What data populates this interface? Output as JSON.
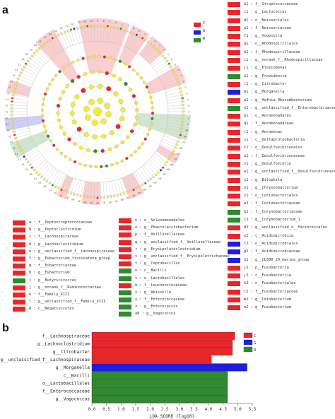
{
  "panel_a_label": "a",
  "panel_b_label": "b",
  "classes": [
    {
      "name": "C",
      "color": "#e8262a"
    },
    {
      "name": "G",
      "color": "#1f1fd6"
    },
    {
      "name": "R",
      "color": "#2e8b2e"
    }
  ],
  "cladogram_tags": [
    "a",
    "b",
    "c",
    "d",
    "e",
    "f",
    "g",
    "h",
    "i",
    "j",
    "k",
    "l",
    "m",
    "n",
    "o",
    "p",
    "q",
    "r",
    "s",
    "t",
    "u",
    "v",
    "w",
    "x",
    "y",
    "z",
    "a0",
    "b0",
    "c0",
    "d0",
    "e0",
    "f0",
    "g0",
    "h0",
    "i0",
    "j0",
    "k0",
    "l0",
    "m0",
    "n0",
    "o0",
    "p0",
    "q0",
    "r0",
    "s0",
    "t0",
    "u0",
    "v0",
    "w0",
    "x0",
    "y0",
    "z0",
    "a1",
    "b1",
    "c1",
    "d1",
    "e1",
    "f1",
    "g1",
    "h1",
    "i1",
    "j1",
    "k1",
    "l1",
    "m1",
    "n1",
    "o1",
    "p1",
    "q1",
    "r1",
    "s1",
    "t1",
    "u1",
    "v1",
    "w1",
    "x1",
    "y1",
    "z1",
    "a2",
    "b2",
    "c2",
    "d2",
    "e2",
    "f2",
    "g2",
    "h2",
    "i2",
    "j2",
    "k2",
    "l2",
    "m2",
    "n2"
  ],
  "legend_right": [
    {
      "key": "b1",
      "text": "b1 : f__Streptococcaceae",
      "cls": "C"
    },
    {
      "key": "c1",
      "text": "c1 : g__Lactococcus",
      "cls": "C"
    },
    {
      "key": "d1",
      "text": "d1 : o__Neisseriales",
      "cls": "C"
    },
    {
      "key": "e1",
      "text": "e1 : f__Neisseriaceae",
      "cls": "C"
    },
    {
      "key": "f1",
      "text": "f1 : g__Vogesella",
      "cls": "C"
    },
    {
      "key": "g1",
      "text": "g1 : o__Rhodospirillales",
      "cls": "C"
    },
    {
      "key": "h1",
      "text": "h1 : f__Rhodospirillaceae",
      "cls": "C"
    },
    {
      "key": "i1",
      "text": "i1 : g__norank_f__Rhodospirillaceae",
      "cls": "C"
    },
    {
      "key": "j1",
      "text": "j1 : g__Plesiomonas",
      "cls": "C"
    },
    {
      "key": "k1",
      "text": "k1 : g__Providencia",
      "cls": "R"
    },
    {
      "key": "l1",
      "text": "l1 : g__Citrobacter",
      "cls": "C"
    },
    {
      "key": "m1",
      "text": "m1 : g__Morganella",
      "cls": "G"
    },
    {
      "key": "n1",
      "text": "n1 : g__Hafnia_Obesumbacterium",
      "cls": "C"
    },
    {
      "key": "o1",
      "text": "o1 : g__unclassified_f__Enterobacteriaceae",
      "cls": "R"
    },
    {
      "key": "p1",
      "text": "p1 : o__Aeromonadales",
      "cls": "C"
    },
    {
      "key": "q1",
      "text": "q1 : f__Aeromonadaceae",
      "cls": "C"
    },
    {
      "key": "r1",
      "text": "r1 : g__Aeromonas",
      "cls": "C"
    },
    {
      "key": "s1",
      "text": "s1 : c__Deltaproteobacteria",
      "cls": "C"
    },
    {
      "key": "t1",
      "text": "t1 : o__Desulfovibrionales",
      "cls": "C"
    },
    {
      "key": "u1",
      "text": "u1 : f__Desulfovibrionaceae",
      "cls": "C"
    },
    {
      "key": "v1",
      "text": "v1 : g__Desulfovibrio",
      "cls": "C"
    },
    {
      "key": "w1",
      "text": "w1 : g__unclassified_f__Desulfovibrionaceae",
      "cls": "C"
    },
    {
      "key": "x1",
      "text": "x1 : g__Bilophila",
      "cls": "C"
    },
    {
      "key": "y1",
      "text": "y1 : g__Chryseobacterium",
      "cls": "C"
    },
    {
      "key": "z1",
      "text": "z1 : o__Coriobacteriales",
      "cls": "C"
    },
    {
      "key": "a2",
      "text": "a2 : f__Coriobacteriaceae",
      "cls": "C"
    },
    {
      "key": "b2",
      "text": "b2 : f__Corynebacteriaceae",
      "cls": "R"
    },
    {
      "key": "c2",
      "text": "c2 : g__Corynebacterium_1",
      "cls": "R"
    },
    {
      "key": "d2",
      "text": "d2 : g__unclassified_o__Micrococcales",
      "cls": "C"
    },
    {
      "key": "e2",
      "text": "e2 : c__Acidimicrobiia",
      "cls": "C"
    },
    {
      "key": "f2",
      "text": "f2 : o__Acidimicrobiales",
      "cls": "G"
    },
    {
      "key": "g2",
      "text": "g2 : f__Acidimicrobiaceae",
      "cls": "G"
    },
    {
      "key": "h2",
      "text": "h2 : g__CL500_29_marine_group",
      "cls": "G"
    },
    {
      "key": "i2",
      "text": "i2 : p__Fusobacteria",
      "cls": "C"
    },
    {
      "key": "j2",
      "text": "j2 : c__Fusobacteriia",
      "cls": "C"
    },
    {
      "key": "k2",
      "text": "k2 : o__Fusobacteriales",
      "cls": "C"
    },
    {
      "key": "l2",
      "text": "l2 : f__Fusobacteriaceae",
      "cls": "C"
    },
    {
      "key": "m2",
      "text": "m2 : g__Cetobacterium",
      "cls": "C"
    },
    {
      "key": "n2",
      "text": "n2 : g__Fusobacterium",
      "cls": "C"
    }
  ],
  "legend_left": [
    {
      "text": "a : f__Peptostreptococcaceae",
      "cls": "C"
    },
    {
      "text": "b : g__Peptoclostridium",
      "cls": "C"
    },
    {
      "text": "c : f__Lachnospiraceae",
      "cls": "C"
    },
    {
      "text": "d : g__Lachnoclostridium",
      "cls": "C"
    },
    {
      "text": "e : g__unclassified_f__Lachnospiraceae",
      "cls": "C"
    },
    {
      "text": "f : g__Eubacterium_fissicatena_group",
      "cls": "C"
    },
    {
      "text": "g : f__Eubacteriaceae",
      "cls": "C"
    },
    {
      "text": "h : g__Eubacterium",
      "cls": "C"
    },
    {
      "text": "i : g__Butyricicoccus",
      "cls": "R"
    },
    {
      "text": "j : g__norank_f__Ruminococcaceae",
      "cls": "C"
    },
    {
      "text": "k : f__Family_XIII",
      "cls": "C"
    },
    {
      "text": "l : g__unclassified_f__Family_XIII",
      "cls": "C"
    },
    {
      "text": "m : c__Negativicutes",
      "cls": "C"
    }
  ],
  "legend_mid": [
    {
      "text": "n : o__Selenomonadales",
      "cls": "C"
    },
    {
      "text": "o : g__Phascolarctobacterium",
      "cls": "C"
    },
    {
      "text": "p : f__Veillonellaceae",
      "cls": "C"
    },
    {
      "text": "q : g__unclassified_f__Veillonellaceae",
      "cls": "C"
    },
    {
      "text": "r : g__Erysipelatoclostridium",
      "cls": "C"
    },
    {
      "text": "s : g__unclassified_f__Erysipelotrichaceae",
      "cls": "C"
    },
    {
      "text": "t : g__Coprobacillus",
      "cls": "C"
    },
    {
      "text": "u : c__Bacilli",
      "cls": "R"
    },
    {
      "text": "v : o__Lactobacillales",
      "cls": "R"
    },
    {
      "text": "w : f__Leuconostocaceae",
      "cls": "C"
    },
    {
      "text": "x : g__Weissella",
      "cls": "R"
    },
    {
      "text": "y : f__Enterococcaceae",
      "cls": "R"
    },
    {
      "text": "z : g__Enterococcus",
      "cls": "R"
    },
    {
      "text": "a0 : g__Vagococcus",
      "cls": "R"
    }
  ],
  "chart_data": {
    "type": "bar",
    "orientation": "horizontal",
    "categories": [
      "f__Lachnospiraceae",
      "g__Lachnoclostridium",
      "g__Citrobacter",
      "g__unclassified_f__Lachnospiraceae",
      "g__Morganella",
      "c__Bacilli",
      "o__Lactobacillales",
      "f__Enterococcaceae",
      "g__Vagococcus"
    ],
    "values": [
      4.9,
      4.82,
      4.82,
      4.1,
      5.32,
      4.65,
      4.65,
      4.65,
      4.65
    ],
    "classes": [
      "C",
      "C",
      "C",
      "C",
      "G",
      "R",
      "R",
      "R",
      "R"
    ],
    "xlabel": "LDA SCORE (log10)",
    "ticks": [
      "0.0",
      "0.5",
      "1.0",
      "1.5",
      "2.0",
      "2.5",
      "3.0",
      "3.5",
      "4.0",
      "4.5",
      "5.0",
      "5.5"
    ],
    "xlim": [
      0,
      5.5
    ],
    "legend_position": "top-right"
  }
}
